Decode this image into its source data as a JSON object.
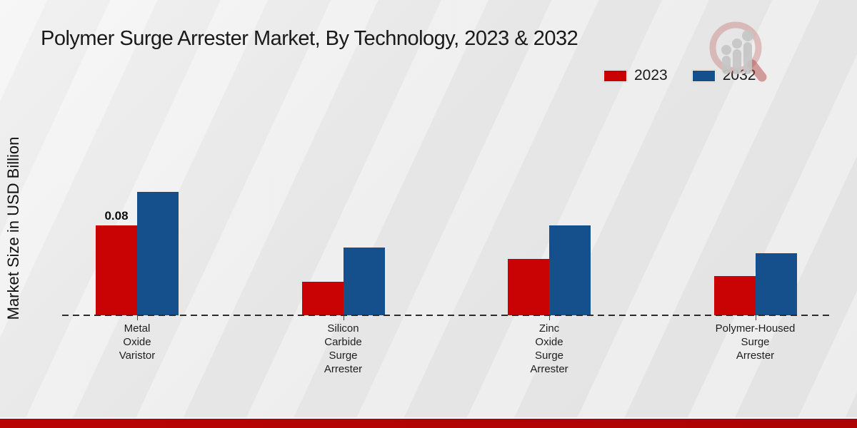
{
  "title": "Polymer Surge Arrester Market, By Technology, 2023 & 2032",
  "y_axis_label": "Market Size in USD Billion",
  "colors": {
    "series_2023": "#c90303",
    "series_2032": "#16508c",
    "footer_band": "#b50505",
    "text": "#1a1a1a",
    "background": "#ebebeb"
  },
  "icons": {
    "logo": "magnifier-growth-chart-logo"
  },
  "chart_data": {
    "type": "bar",
    "title": "Polymer Surge Arrester Market, By Technology, 2023 & 2032",
    "xlabel": "",
    "ylabel": "Market Size in USD Billion",
    "categories": [
      "Metal Oxide Varistor",
      "Silicon Carbide Surge Arrester",
      "Zinc Oxide Surge Arrester",
      "Polymer-Housed Surge Arrester"
    ],
    "series": [
      {
        "name": "2023",
        "color": "#c90303",
        "values": [
          0.08,
          0.03,
          0.05,
          0.035
        ],
        "labels": [
          "0.08",
          "",
          "",
          ""
        ]
      },
      {
        "name": "2032",
        "color": "#16508c",
        "values": [
          0.11,
          0.06,
          0.08,
          0.055
        ],
        "labels": [
          "",
          "",
          "",
          ""
        ]
      }
    ],
    "ylim": [
      0,
      0.12
    ],
    "grid": false,
    "y_axis_ticks_visible": false,
    "baseline_style": "dashed",
    "legend_position": "top-right"
  }
}
